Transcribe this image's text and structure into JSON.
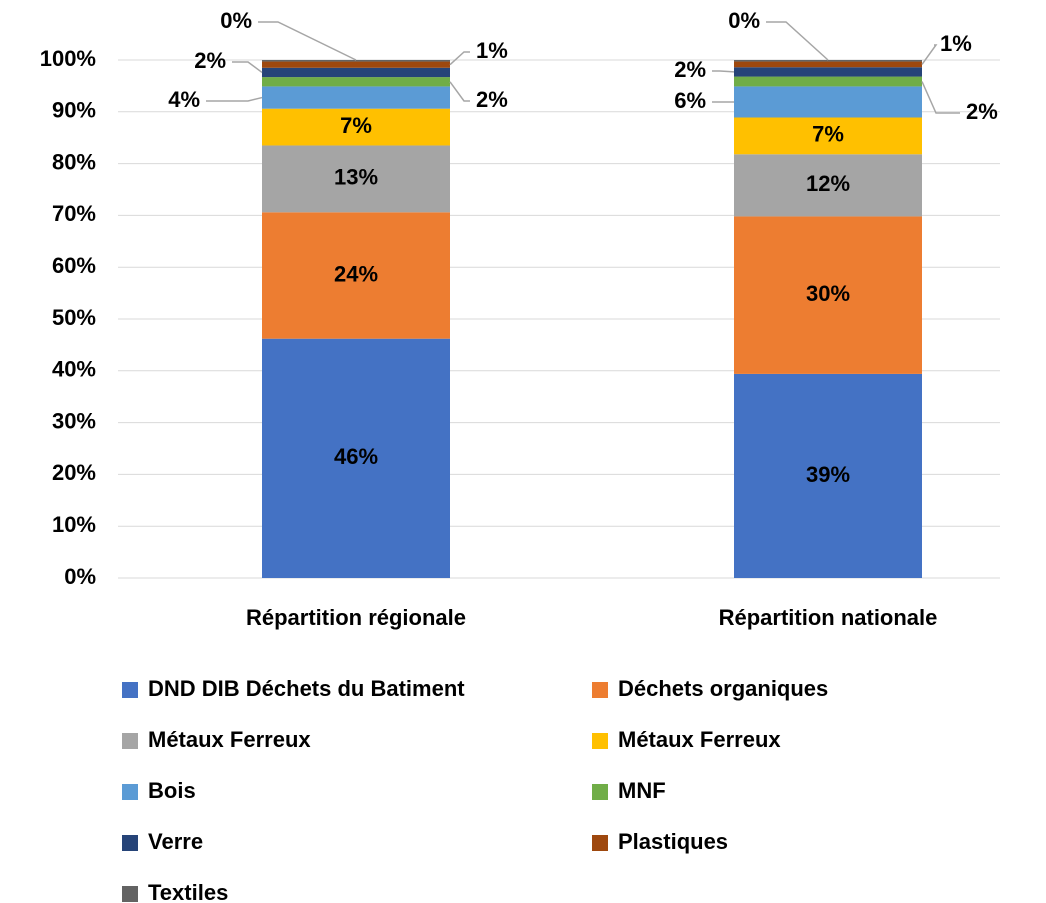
{
  "chart_data": {
    "type": "stacked_bar",
    "categories": [
      "Répartition régionale",
      "Répartition nationale"
    ],
    "series": [
      {
        "name": "DND DIB Déchets du Batiment",
        "color": "#4472c4",
        "values": [
          46.2,
          39.4
        ],
        "value_labels": [
          "46%",
          "39%"
        ]
      },
      {
        "name": "Déchets organiques",
        "color": "#ed7d31",
        "values": [
          24.4,
          30.4
        ],
        "value_labels": [
          "24%",
          "30%"
        ]
      },
      {
        "name": "Métaux Ferreux",
        "color": "#a5a5a5",
        "values": [
          12.9,
          12.0
        ],
        "value_labels": [
          "13%",
          "12%"
        ]
      },
      {
        "name": "Métaux Ferreux",
        "color": "#ffc000",
        "values": [
          7.1,
          7.1
        ],
        "value_labels": [
          "7%",
          "7%"
        ]
      },
      {
        "name": "Bois",
        "color": "#5b9bd5",
        "values": [
          4.3,
          6.0
        ],
        "value_labels": [
          "4%",
          "6%"
        ]
      },
      {
        "name": "MNF",
        "color": "#70ad47",
        "values": [
          1.8,
          1.9
        ],
        "value_labels": [
          "2%",
          "2%"
        ]
      },
      {
        "name": "Verre",
        "color": "#264478",
        "values": [
          1.8,
          1.8
        ],
        "value_labels": [
          "2%",
          "2%"
        ]
      },
      {
        "name": "Plastiques",
        "color": "#9e480e",
        "values": [
          1.2,
          1.1
        ],
        "value_labels": [
          "1%",
          "1%"
        ]
      },
      {
        "name": "Textiles",
        "color": "#636363",
        "values": [
          0.3,
          0.3
        ],
        "value_labels": [
          "0%",
          "0%"
        ]
      }
    ],
    "ylim": [
      0,
      100
    ],
    "yticks": [
      {
        "value": 0,
        "label": "0%"
      },
      {
        "value": 10,
        "label": "10%"
      },
      {
        "value": 20,
        "label": "20%"
      },
      {
        "value": 30,
        "label": "30%"
      },
      {
        "value": 40,
        "label": "40%"
      },
      {
        "value": 50,
        "label": "50%"
      },
      {
        "value": 60,
        "label": "60%"
      },
      {
        "value": 70,
        "label": "70%"
      },
      {
        "value": 80,
        "label": "80%"
      },
      {
        "value": 90,
        "label": "90%"
      },
      {
        "value": 100,
        "label": "100%"
      }
    ],
    "grid": true,
    "legend": "bottom"
  }
}
